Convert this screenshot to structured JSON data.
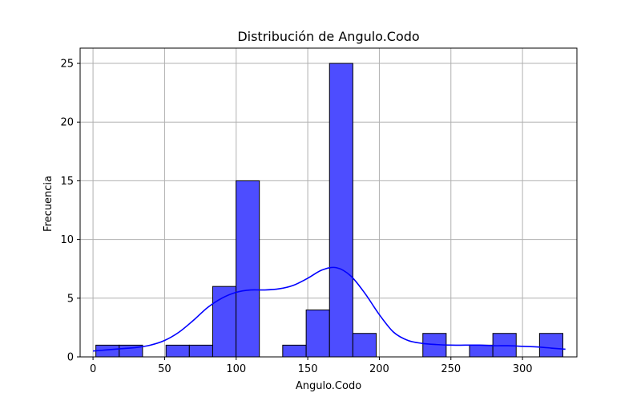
{
  "chart_data": {
    "type": "bar",
    "title": "Distribución de Angulo.Codo",
    "xlabel": "Angulo.Codo",
    "ylabel": "Frecuencia",
    "xlim": [
      -9,
      338
    ],
    "ylim": [
      0,
      26.3
    ],
    "xticks": [
      0,
      50,
      100,
      150,
      200,
      250,
      300
    ],
    "yticks": [
      0,
      5,
      10,
      15,
      20,
      25
    ],
    "grid": true,
    "bar_color": "#4d4dff",
    "bar_edge_color": "#000000",
    "kde_color": "#0000ff",
    "bins": [
      {
        "x0": 2,
        "x1": 18.3,
        "count": 1
      },
      {
        "x0": 18.3,
        "x1": 34.6,
        "count": 1
      },
      {
        "x0": 34.6,
        "x1": 51,
        "count": 0
      },
      {
        "x0": 51,
        "x1": 67.3,
        "count": 1
      },
      {
        "x0": 67.3,
        "x1": 83.6,
        "count": 1
      },
      {
        "x0": 83.6,
        "x1": 99.9,
        "count": 6
      },
      {
        "x0": 99.9,
        "x1": 116.2,
        "count": 15
      },
      {
        "x0": 116.2,
        "x1": 132.5,
        "count": 0
      },
      {
        "x0": 132.5,
        "x1": 148.9,
        "count": 1
      },
      {
        "x0": 148.9,
        "x1": 165.2,
        "count": 4
      },
      {
        "x0": 165.2,
        "x1": 181.5,
        "count": 25
      },
      {
        "x0": 181.5,
        "x1": 197.8,
        "count": 2
      },
      {
        "x0": 197.8,
        "x1": 214.1,
        "count": 0
      },
      {
        "x0": 214.1,
        "x1": 230.4,
        "count": 0
      },
      {
        "x0": 230.4,
        "x1": 246.7,
        "count": 2
      },
      {
        "x0": 246.7,
        "x1": 263,
        "count": 0
      },
      {
        "x0": 263,
        "x1": 279.3,
        "count": 1
      },
      {
        "x0": 279.3,
        "x1": 295.6,
        "count": 2
      },
      {
        "x0": 295.6,
        "x1": 311.9,
        "count": 0
      },
      {
        "x0": 311.9,
        "x1": 328.2,
        "count": 2
      }
    ],
    "kde": {
      "x": [
        0,
        10,
        20,
        30,
        40,
        50,
        60,
        70,
        80,
        90,
        100,
        110,
        120,
        130,
        140,
        150,
        160,
        170,
        180,
        190,
        200,
        210,
        220,
        230,
        240,
        250,
        260,
        270,
        280,
        290,
        300,
        310,
        320,
        330
      ],
      "y": [
        0.5,
        0.6,
        0.7,
        0.8,
        1.0,
        1.4,
        2.1,
        3.1,
        4.2,
        5.0,
        5.5,
        5.7,
        5.7,
        5.8,
        6.1,
        6.7,
        7.4,
        7.6,
        6.9,
        5.4,
        3.6,
        2.1,
        1.4,
        1.15,
        1.05,
        1.0,
        1.0,
        1.0,
        0.95,
        0.95,
        0.9,
        0.85,
        0.75,
        0.65
      ]
    }
  }
}
